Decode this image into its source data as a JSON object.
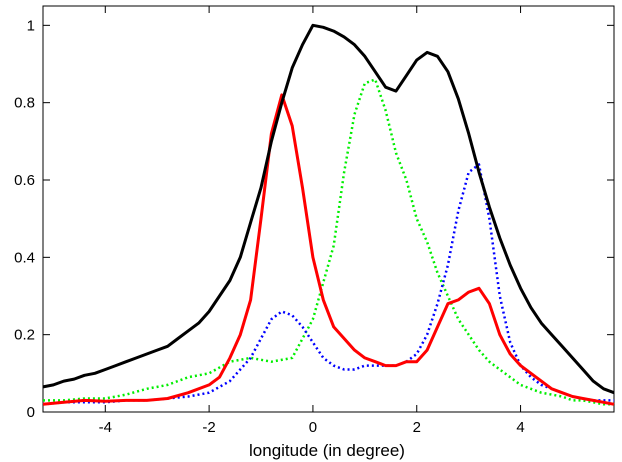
{
  "chart_data": {
    "type": "line",
    "title": "",
    "xlabel": "longitude (in degree)",
    "ylabel": "",
    "xlim": [
      -5.2,
      5.8
    ],
    "ylim": [
      0,
      1.05
    ],
    "grid": false,
    "legend": "none",
    "x_ticks": [
      -4,
      -2,
      0,
      2,
      4
    ],
    "y_ticks": [
      0,
      0.2,
      0.4,
      0.6,
      0.8,
      1
    ],
    "x_tick_labels": [
      "-4",
      "-2",
      "0",
      "2",
      "4"
    ],
    "y_tick_labels": [
      "0",
      "0.2",
      "0.4",
      "0.6",
      "0.8",
      "1"
    ],
    "series": [
      {
        "color": "#000000",
        "style": "solid",
        "x": [
          -5.2,
          -5.0,
          -4.8,
          -4.6,
          -4.4,
          -4.2,
          -4.0,
          -3.8,
          -3.6,
          -3.4,
          -3.2,
          -3.0,
          -2.8,
          -2.6,
          -2.4,
          -2.2,
          -2.0,
          -1.8,
          -1.6,
          -1.4,
          -1.2,
          -1.0,
          -0.8,
          -0.6,
          -0.4,
          -0.2,
          0.0,
          0.2,
          0.4,
          0.6,
          0.8,
          1.0,
          1.2,
          1.4,
          1.6,
          1.8,
          2.0,
          2.2,
          2.4,
          2.6,
          2.8,
          3.0,
          3.2,
          3.4,
          3.6,
          3.8,
          4.0,
          4.2,
          4.4,
          4.6,
          4.8,
          5.0,
          5.2,
          5.4,
          5.6,
          5.8
        ],
        "values": [
          0.065,
          0.07,
          0.08,
          0.085,
          0.095,
          0.1,
          0.11,
          0.12,
          0.13,
          0.14,
          0.15,
          0.16,
          0.17,
          0.19,
          0.21,
          0.23,
          0.26,
          0.3,
          0.34,
          0.4,
          0.49,
          0.58,
          0.7,
          0.8,
          0.89,
          0.95,
          1.0,
          0.995,
          0.985,
          0.97,
          0.95,
          0.92,
          0.88,
          0.84,
          0.83,
          0.87,
          0.91,
          0.93,
          0.92,
          0.88,
          0.81,
          0.72,
          0.62,
          0.53,
          0.45,
          0.38,
          0.32,
          0.27,
          0.23,
          0.2,
          0.17,
          0.14,
          0.11,
          0.08,
          0.06,
          0.05
        ]
      },
      {
        "color": "#ff0000",
        "style": "solid",
        "x": [
          -5.2,
          -4.8,
          -4.4,
          -4.0,
          -3.6,
          -3.2,
          -2.8,
          -2.4,
          -2.0,
          -1.8,
          -1.6,
          -1.4,
          -1.2,
          -1.0,
          -0.8,
          -0.6,
          -0.4,
          -0.2,
          0.0,
          0.2,
          0.4,
          0.6,
          0.8,
          1.0,
          1.2,
          1.4,
          1.6,
          1.8,
          2.0,
          2.2,
          2.4,
          2.6,
          2.8,
          3.0,
          3.2,
          3.4,
          3.6,
          3.8,
          4.0,
          4.2,
          4.4,
          4.6,
          4.8,
          5.0,
          5.2,
          5.4,
          5.6,
          5.8
        ],
        "values": [
          0.02,
          0.025,
          0.03,
          0.028,
          0.03,
          0.03,
          0.035,
          0.05,
          0.07,
          0.09,
          0.14,
          0.2,
          0.29,
          0.5,
          0.72,
          0.82,
          0.74,
          0.58,
          0.4,
          0.29,
          0.22,
          0.19,
          0.16,
          0.14,
          0.13,
          0.12,
          0.12,
          0.13,
          0.13,
          0.16,
          0.22,
          0.28,
          0.29,
          0.31,
          0.32,
          0.28,
          0.2,
          0.15,
          0.12,
          0.1,
          0.08,
          0.06,
          0.05,
          0.04,
          0.035,
          0.03,
          0.025,
          0.02
        ]
      },
      {
        "color": "#00ee00",
        "style": "dotted",
        "x": [
          -5.2,
          -4.8,
          -4.4,
          -4.0,
          -3.6,
          -3.2,
          -2.8,
          -2.4,
          -2.0,
          -1.6,
          -1.2,
          -0.8,
          -0.4,
          0.0,
          0.4,
          0.6,
          0.8,
          1.0,
          1.2,
          1.4,
          1.6,
          1.8,
          2.0,
          2.2,
          2.4,
          2.6,
          2.8,
          3.0,
          3.2,
          3.4,
          3.6,
          3.8,
          4.0,
          4.2,
          4.4,
          4.6,
          4.8,
          5.0,
          5.2,
          5.4,
          5.6,
          5.8
        ],
        "values": [
          0.03,
          0.03,
          0.035,
          0.035,
          0.045,
          0.06,
          0.07,
          0.09,
          0.1,
          0.13,
          0.14,
          0.13,
          0.14,
          0.24,
          0.43,
          0.62,
          0.77,
          0.85,
          0.86,
          0.78,
          0.67,
          0.6,
          0.5,
          0.44,
          0.36,
          0.3,
          0.24,
          0.2,
          0.16,
          0.13,
          0.11,
          0.09,
          0.07,
          0.06,
          0.05,
          0.045,
          0.04,
          0.03,
          0.03,
          0.025,
          0.02,
          0.02
        ]
      },
      {
        "color": "#0000ff",
        "style": "dotted",
        "x": [
          -5.2,
          -4.8,
          -4.4,
          -4.0,
          -3.6,
          -3.2,
          -2.8,
          -2.4,
          -2.0,
          -1.6,
          -1.2,
          -1.0,
          -0.8,
          -0.6,
          -0.4,
          -0.2,
          0.0,
          0.2,
          0.4,
          0.6,
          0.8,
          1.0,
          1.2,
          1.4,
          1.6,
          1.8,
          2.0,
          2.2,
          2.4,
          2.6,
          2.8,
          3.0,
          3.2,
          3.4,
          3.6,
          3.8,
          4.0,
          4.2,
          4.4,
          4.6,
          4.8,
          5.0,
          5.2,
          5.4,
          5.6,
          5.8
        ],
        "values": [
          0.02,
          0.025,
          0.025,
          0.025,
          0.03,
          0.03,
          0.035,
          0.04,
          0.05,
          0.08,
          0.14,
          0.19,
          0.24,
          0.26,
          0.25,
          0.22,
          0.18,
          0.14,
          0.12,
          0.11,
          0.11,
          0.12,
          0.12,
          0.12,
          0.12,
          0.13,
          0.15,
          0.2,
          0.28,
          0.38,
          0.52,
          0.62,
          0.64,
          0.5,
          0.3,
          0.18,
          0.12,
          0.09,
          0.07,
          0.06,
          0.05,
          0.04,
          0.035,
          0.03,
          0.03,
          0.03
        ]
      }
    ]
  }
}
